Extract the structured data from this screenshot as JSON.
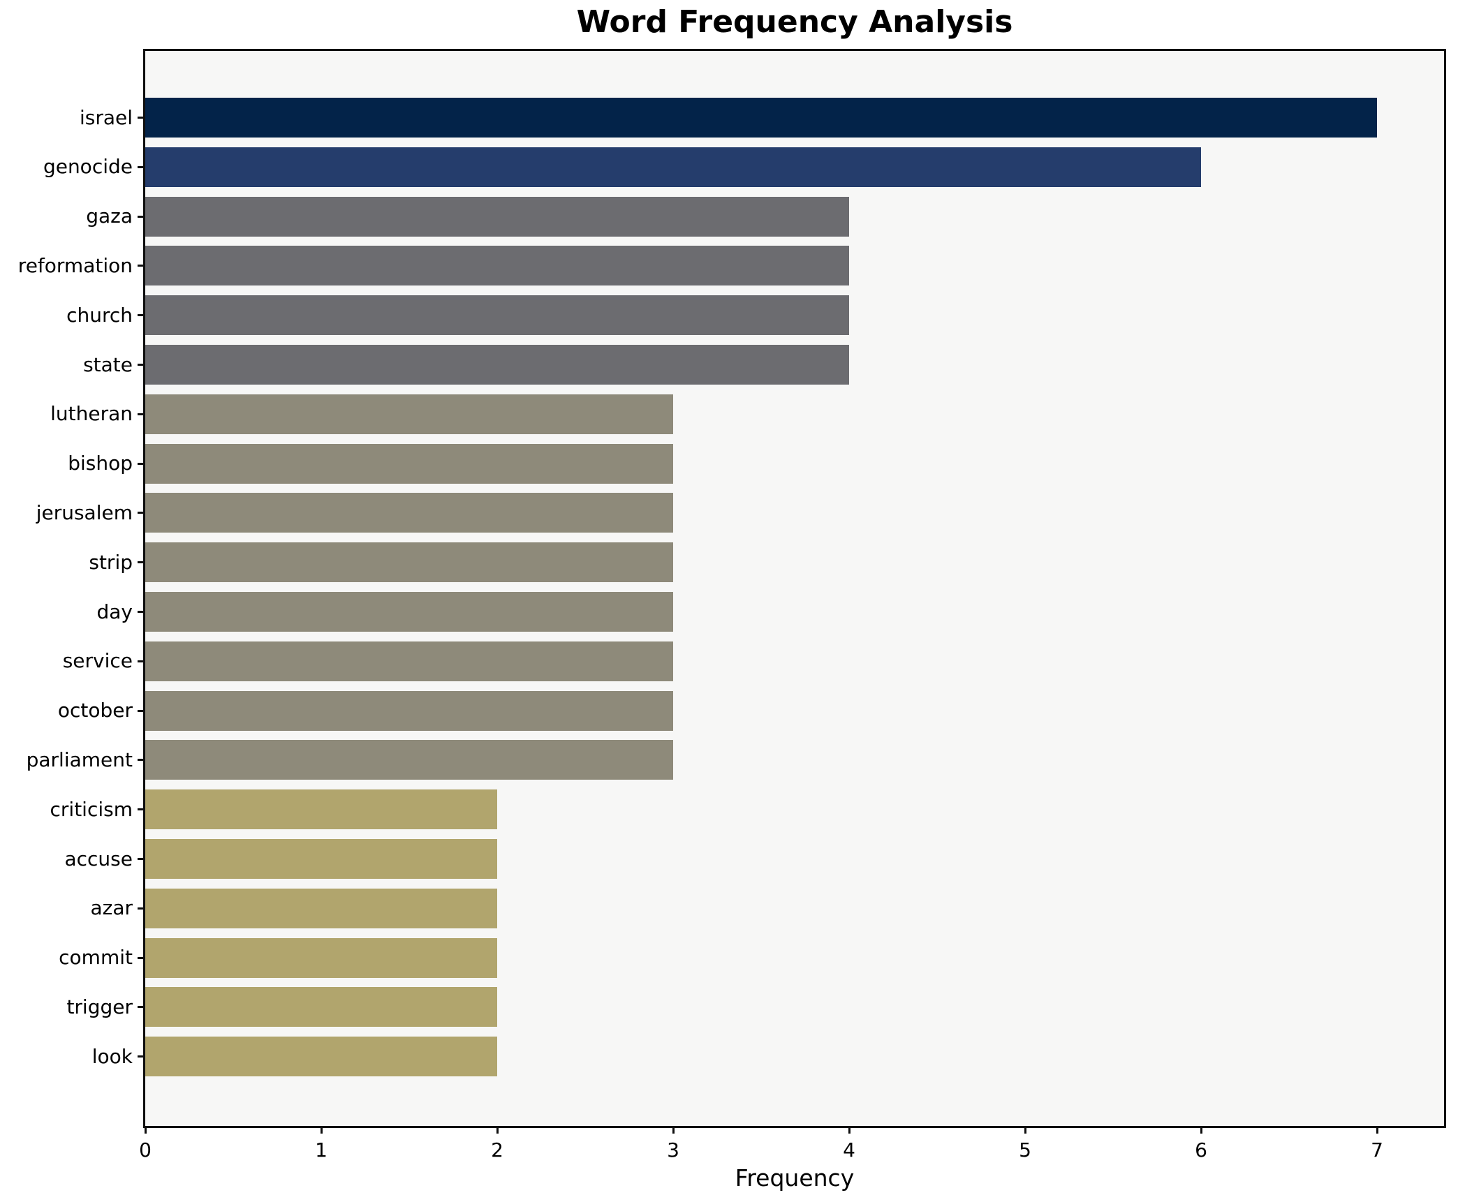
{
  "figure": {
    "title": "Word Frequency Analysis"
  },
  "chart_data": {
    "type": "bar",
    "orientation": "horizontal",
    "title": "Word Frequency Analysis",
    "xlabel": "Frequency",
    "ylabel": "",
    "categories": [
      "israel",
      "genocide",
      "gaza",
      "reformation",
      "church",
      "state",
      "lutheran",
      "bishop",
      "jerusalem",
      "strip",
      "day",
      "service",
      "october",
      "parliament",
      "criticism",
      "accuse",
      "azar",
      "commit",
      "trigger",
      "look"
    ],
    "values": [
      7,
      6,
      4,
      4,
      4,
      4,
      3,
      3,
      3,
      3,
      3,
      3,
      3,
      3,
      2,
      2,
      2,
      2,
      2,
      2
    ],
    "bar_colors": [
      "#032349",
      "#253d6c",
      "#6c6c70",
      "#6c6c70",
      "#6c6c70",
      "#6c6c70",
      "#8e8a7a",
      "#8e8a7a",
      "#8e8a7a",
      "#8e8a7a",
      "#8e8a7a",
      "#8e8a7a",
      "#8e8a7a",
      "#8e8a7a",
      "#b1a56d",
      "#b1a56d",
      "#b1a56d",
      "#b1a56d",
      "#b1a56d",
      "#b1a56d"
    ],
    "xticks": [
      0,
      1,
      2,
      3,
      4,
      5,
      6,
      7
    ],
    "xlim": [
      0,
      7.38
    ],
    "grid": false,
    "legend_position": "none",
    "plot_background": "#f7f7f6",
    "figure_background": "#ffffff",
    "spine_color": "#0f0f0f",
    "text_color": "#000000"
  }
}
